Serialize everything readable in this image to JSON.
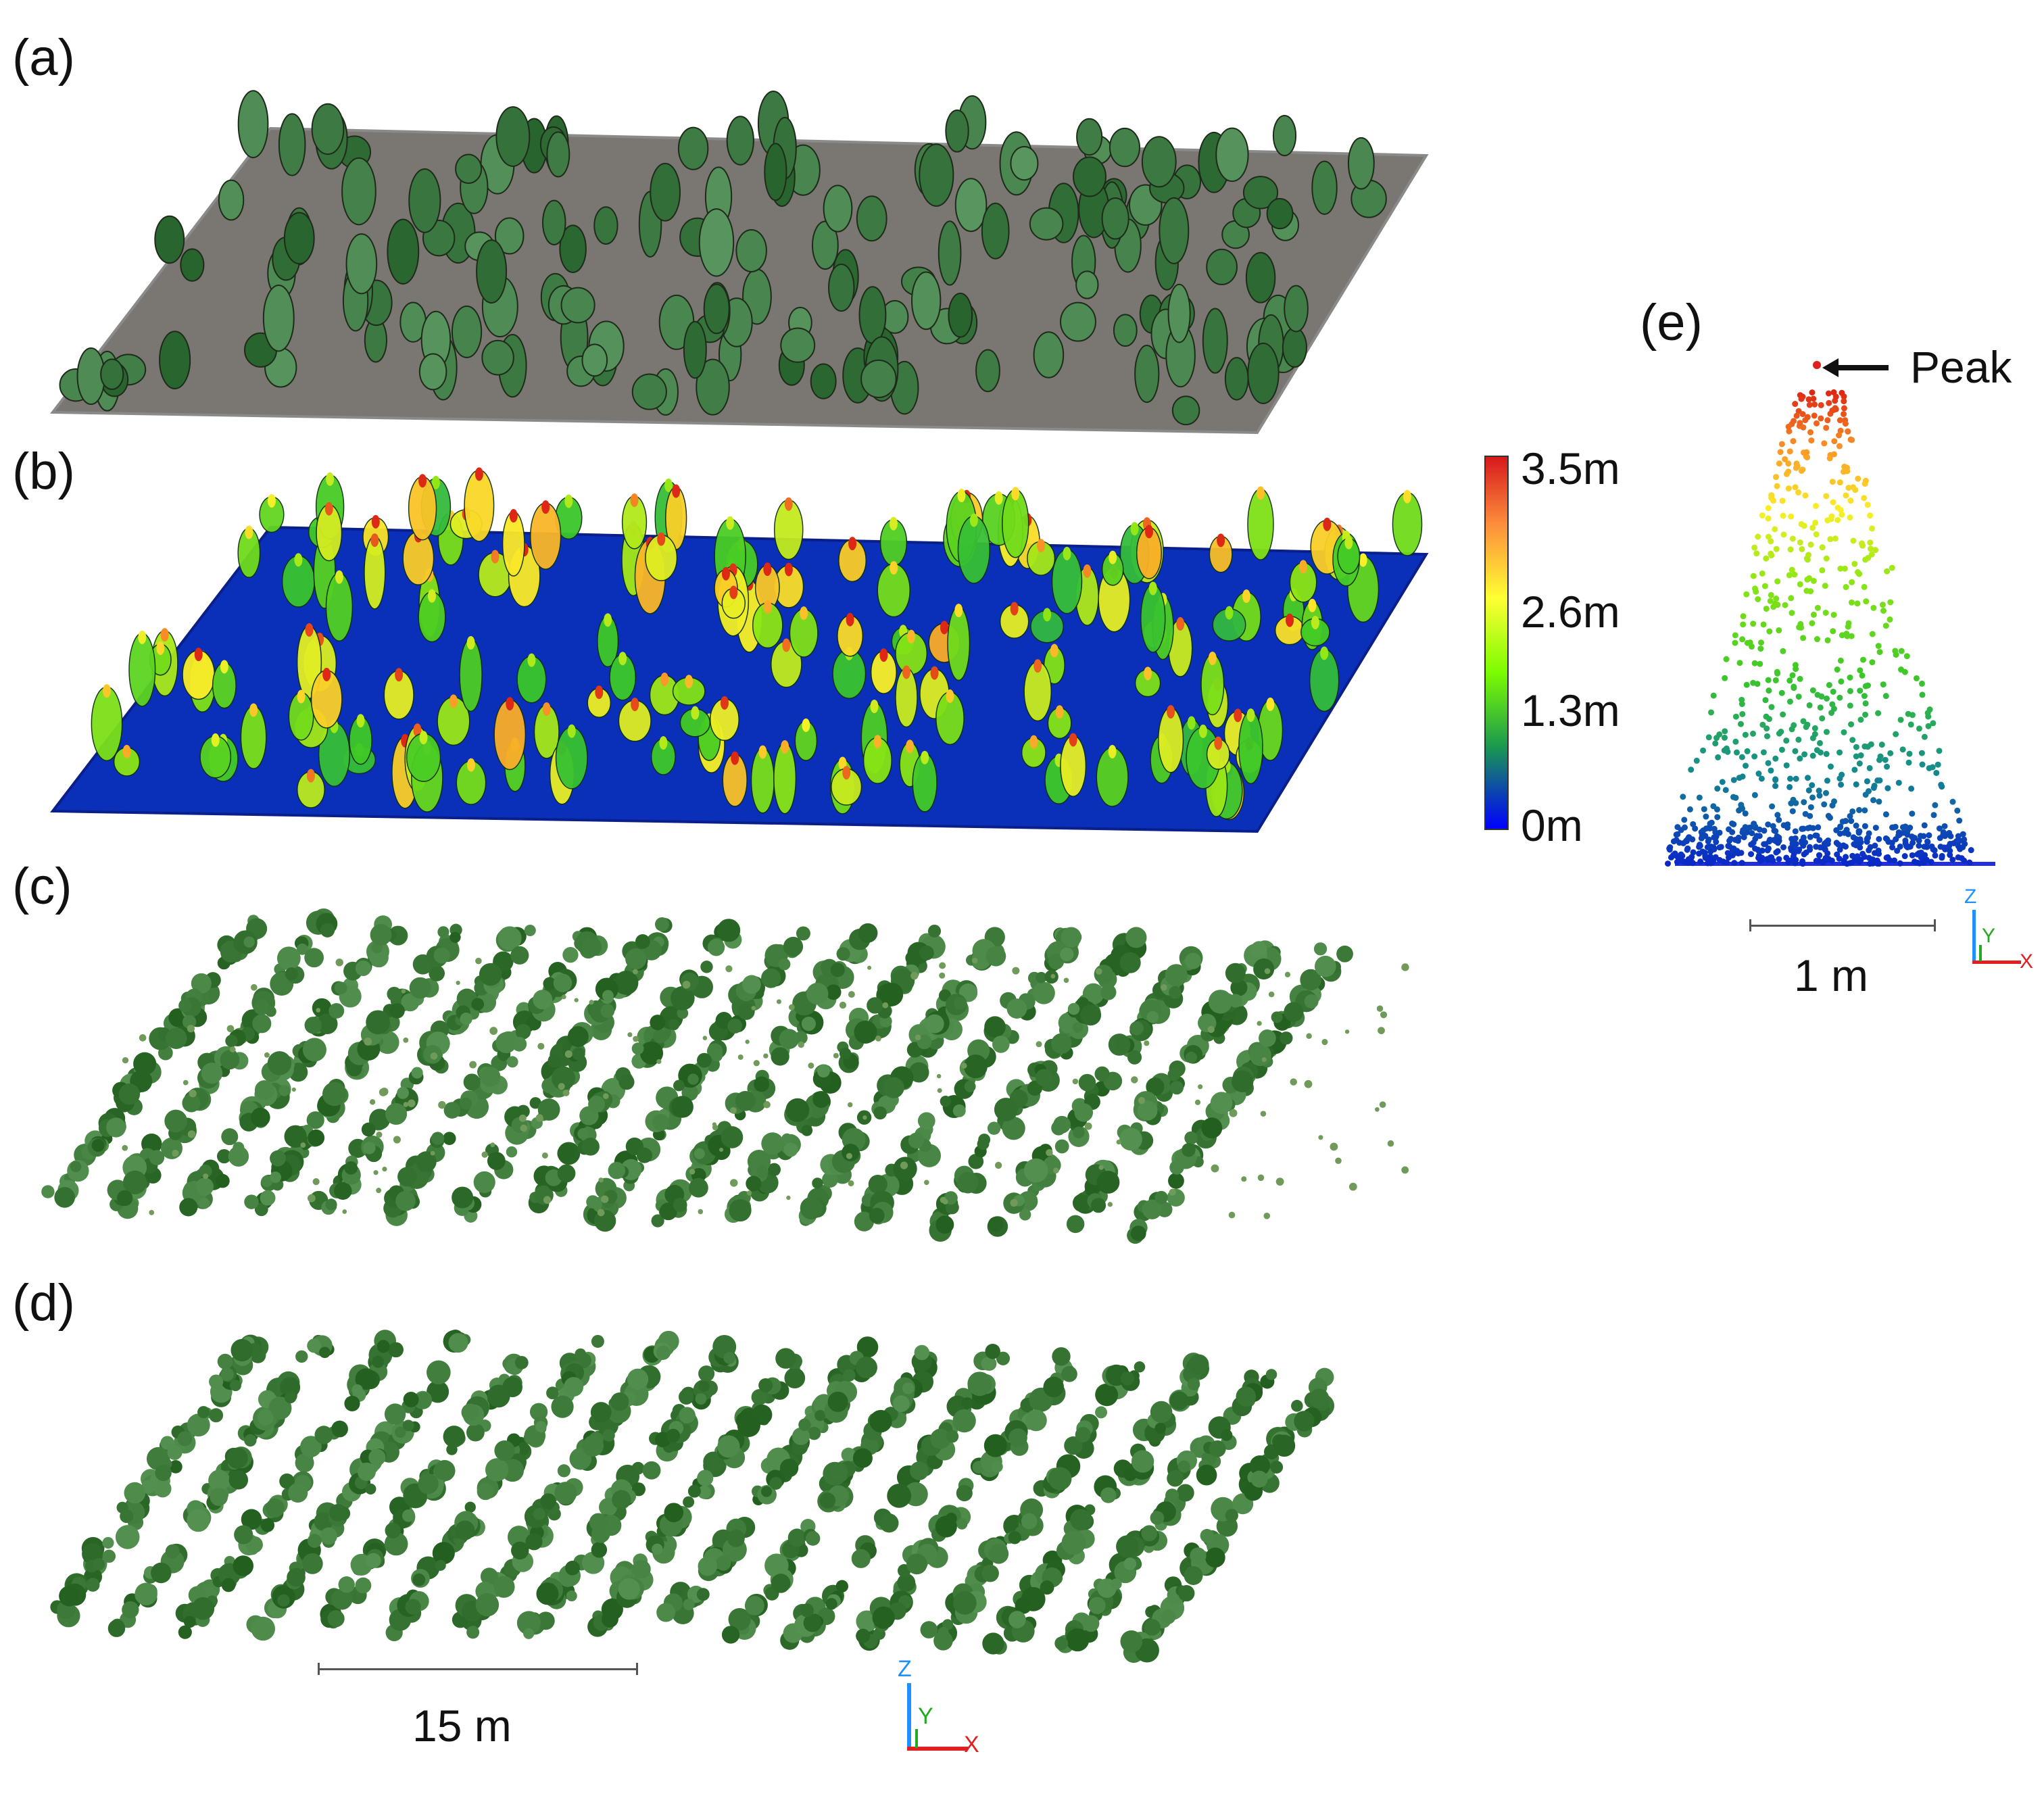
{
  "figure": {
    "panels": [
      {
        "id": "a",
        "label": "(a)"
      },
      {
        "id": "b",
        "label": "(b)"
      },
      {
        "id": "c",
        "label": "(c)"
      },
      {
        "id": "d",
        "label": "(d)"
      },
      {
        "id": "e",
        "label": "(e)"
      }
    ],
    "colorbar": {
      "ticks": [
        "3.5m",
        "2.6m",
        "1.3m",
        "0m"
      ],
      "colors": [
        "#d7191c",
        "#fdae61",
        "#ffff33",
        "#7cfc00",
        "#1a9850",
        "#0000ff"
      ]
    },
    "peak_annotation": "Peak",
    "scale_bars": {
      "main": "15 m",
      "detail": "1 m"
    },
    "axes": {
      "z": "Z",
      "y": "Y",
      "x": "X",
      "colors": {
        "z": "#1e90ff",
        "y": "#22aa22",
        "x": "#e02020"
      }
    },
    "colors": {
      "ground_rgb": "#7a7672",
      "tree_green": "#3f6b33",
      "ground_height": "#0a2fb8"
    }
  }
}
